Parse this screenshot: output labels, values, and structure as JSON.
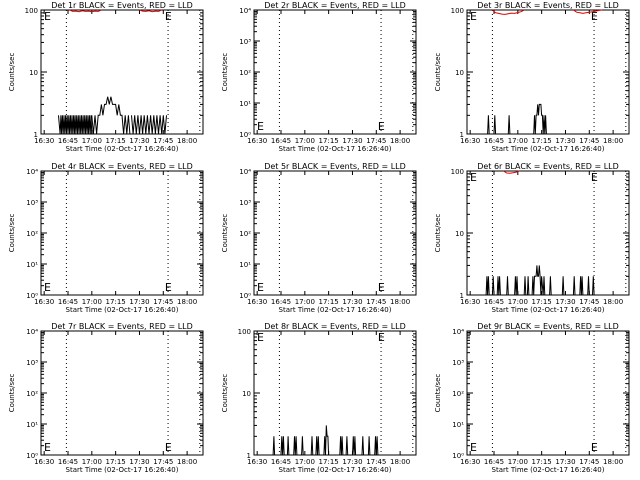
{
  "figure": {
    "x_label": "Start Time (02-Oct-17 16:26:40)",
    "y_label": "Counts/sec",
    "x_ticks": [
      "16:30",
      "16:45",
      "17:00",
      "17:15",
      "17:30",
      "17:45",
      "18:00"
    ],
    "x_tick_minutes": [
      30,
      45,
      60,
      75,
      90,
      105,
      120
    ],
    "x_range_minutes": [
      28,
      130
    ],
    "dotted_lines_minutes": [
      44,
      108,
      128
    ],
    "e_marker": "E",
    "colors": {
      "black": "#000000",
      "red": "#e00000"
    }
  },
  "chart_data": [
    {
      "type": "line",
      "title": "Det 1r BLACK = Events, RED = LLD",
      "yscale": "log",
      "ylim": [
        1,
        100
      ],
      "y_ticks": [
        "1",
        "10",
        "100"
      ],
      "y_tick_values": [
        1,
        10,
        100
      ],
      "series": [
        {
          "color": "black",
          "segments": [
            {
              "x": [
                39,
                40,
                40.5,
                41,
                41.5,
                42,
                42.5,
                43,
                43.5,
                44,
                44.5,
                45,
                45.5,
                46,
                46.5,
                47,
                47.5,
                48,
                48.5,
                49,
                49.5,
                50,
                50.5,
                51,
                51.5,
                52,
                52.5,
                53,
                53.5,
                54,
                54.5,
                55,
                55.5,
                56,
                56.5,
                57,
                57.5,
                58,
                58.5,
                59,
                59.5,
                60
              ],
              "y": [
                2,
                1,
                2,
                1,
                2,
                1,
                2,
                1,
                2,
                1,
                2,
                1,
                2,
                1,
                2,
                1,
                2,
                1,
                2,
                1,
                2,
                1,
                2,
                1,
                2,
                1,
                2,
                1,
                2,
                1,
                2,
                1,
                2,
                1,
                2,
                1,
                2,
                1,
                2,
                1,
                2,
                1
              ]
            },
            {
              "x": [
                60,
                61,
                62,
                63,
                64,
                65,
                66,
                67,
                68,
                69,
                70,
                71,
                72,
                73,
                74,
                75,
                76,
                77,
                78,
                79,
                80,
                81,
                82,
                83,
                84
              ],
              "y": [
                2,
                1,
                2,
                1,
                2,
                2,
                3,
                2,
                3,
                3,
                4,
                3,
                4,
                3,
                3,
                3,
                2,
                3,
                2,
                2,
                1,
                2,
                1,
                2,
                1
              ]
            },
            {
              "x": [
                85,
                86,
                87,
                88,
                89,
                90,
                91,
                92,
                93,
                94,
                95,
                96,
                97,
                98,
                99,
                100,
                101,
                102,
                103,
                104,
                105,
                106,
                107
              ],
              "y": [
                2,
                1,
                2,
                1,
                2,
                1,
                2,
                1,
                2,
                1,
                2,
                1,
                2,
                1,
                2,
                1,
                2,
                1,
                2,
                1,
                2,
                1,
                2
              ]
            }
          ]
        },
        {
          "color": "red",
          "segments": [
            {
              "x": [
                46,
                48,
                50,
                52,
                54,
                56,
                58,
                60,
                62,
                64,
                66
              ],
              "y": [
                100,
                95,
                96,
                94,
                97,
                95,
                96,
                94,
                96,
                95,
                100
              ]
            },
            {
              "x": [
                90,
                92,
                94,
                96,
                98,
                100,
                102,
                104
              ],
              "y": [
                100,
                96,
                95,
                97,
                94,
                96,
                95,
                100
              ]
            }
          ]
        }
      ]
    },
    {
      "type": "line",
      "title": "Det 2r BLACK = Events, RED = LLD",
      "yscale": "log",
      "ylim": [
        1,
        10000
      ],
      "y_ticks": [
        "10⁰",
        "10¹",
        "10²",
        "10³",
        "10⁴"
      ],
      "y_tick_values": [
        1,
        10,
        100,
        1000,
        10000
      ],
      "series": []
    },
    {
      "type": "line",
      "title": "Det 3r BLACK = Events, RED = LLD",
      "yscale": "log",
      "ylim": [
        1,
        100
      ],
      "y_ticks": [
        "1",
        "10",
        "100"
      ],
      "y_tick_values": [
        1,
        10,
        100
      ],
      "series": [
        {
          "color": "black",
          "segments": [
            {
              "x": [
                41,
                41.5,
                42
              ],
              "y": [
                1,
                2,
                1
              ]
            },
            {
              "x": [
                45,
                45.5,
                46
              ],
              "y": [
                1,
                2,
                1
              ]
            },
            {
              "x": [
                54,
                54.5,
                55
              ],
              "y": [
                1,
                2,
                1
              ]
            },
            {
              "x": [
                70,
                70.5,
                71,
                71.5,
                72,
                72.5,
                73,
                73.5,
                74,
                74.5,
                75,
                75.5,
                76,
                76.5,
                77,
                77.5,
                78
              ],
              "y": [
                1,
                2,
                1,
                2,
                2,
                3,
                2,
                3,
                3,
                3,
                2,
                2,
                1,
                2,
                1,
                2,
                1
              ]
            }
          ]
        },
        {
          "color": "red",
          "segments": [
            {
              "x": [
                44,
                46,
                48,
                50,
                52,
                54,
                56,
                58,
                60,
                62,
                64
              ],
              "y": [
                100,
                90,
                88,
                86,
                85,
                87,
                89,
                88,
                91,
                94,
                100
              ]
            },
            {
              "x": [
                95,
                97,
                99,
                101,
                103,
                105,
                107,
                109,
                111,
                113
              ],
              "y": [
                100,
                92,
                90,
                88,
                90,
                92,
                94,
                96,
                98,
                100
              ]
            }
          ]
        }
      ]
    },
    {
      "type": "line",
      "title": "Det 4r BLACK = Events, RED = LLD",
      "yscale": "log",
      "ylim": [
        1,
        10000
      ],
      "y_ticks": [
        "10⁰",
        "10¹",
        "10²",
        "10³",
        "10⁴"
      ],
      "y_tick_values": [
        1,
        10,
        100,
        1000,
        10000
      ],
      "series": []
    },
    {
      "type": "line",
      "title": "Det 5r BLACK = Events, RED = LLD",
      "yscale": "log",
      "ylim": [
        1,
        10000
      ],
      "y_ticks": [
        "10⁰",
        "10¹",
        "10²",
        "10³",
        "10⁴"
      ],
      "y_tick_values": [
        1,
        10,
        100,
        1000,
        10000
      ],
      "series": []
    },
    {
      "type": "line",
      "title": "Det 6r BLACK = Events, RED = LLD",
      "yscale": "log",
      "ylim": [
        1,
        100
      ],
      "y_ticks": [
        "1",
        "10",
        "100"
      ],
      "y_tick_values": [
        1,
        10,
        100
      ],
      "series": [
        {
          "color": "black",
          "segments": [
            {
              "x": [
                40,
                40.5,
                41,
                41.5,
                42,
                44,
                44.5,
                45,
                47,
                47.5,
                48,
                48.5,
                49,
                53,
                53.5,
                54,
                58,
                58.5,
                59,
                59.5,
                60
              ],
              "y": [
                1,
                2,
                1,
                2,
                1,
                1,
                2,
                1,
                1,
                2,
                1,
                2,
                1,
                1,
                2,
                1,
                1,
                2,
                1,
                2,
                1
              ]
            },
            {
              "x": [
                64,
                64.5,
                65,
                66,
                66.5,
                67,
                69,
                69.5,
                70,
                70.5,
                71,
                71.5,
                72,
                72.5,
                73,
                73.5,
                74,
                74.5,
                75,
                76,
                76.5,
                77,
                80,
                80.5,
                81
              ],
              "y": [
                1,
                2,
                1,
                1,
                2,
                1,
                1,
                2,
                1,
                2,
                2,
                2,
                3,
                2,
                2,
                3,
                2,
                1,
                2,
                1,
                2,
                1,
                1,
                2,
                1
              ]
            },
            {
              "x": [
                88,
                88.5,
                89,
                95,
                95.5,
                96,
                99,
                99.5,
                100,
                100.5,
                101,
                104,
                104.5,
                105,
                107,
                107.5,
                108
              ],
              "y": [
                1,
                2,
                1,
                1,
                2,
                1,
                1,
                2,
                1,
                2,
                1,
                1,
                2,
                1,
                1,
                2,
                1
              ]
            }
          ]
        },
        {
          "color": "red",
          "segments": [
            {
              "x": [
                51,
                53,
                55,
                57,
                59,
                61
              ],
              "y": [
                100,
                93,
                92,
                94,
                96,
                100
              ]
            }
          ]
        }
      ]
    },
    {
      "type": "line",
      "title": "Det 7r BLACK = Events, RED = LLD",
      "yscale": "log",
      "ylim": [
        1,
        10000
      ],
      "y_ticks": [
        "10⁰",
        "10¹",
        "10²",
        "10³",
        "10⁴"
      ],
      "y_tick_values": [
        1,
        10,
        100,
        1000,
        10000
      ],
      "series": []
    },
    {
      "type": "line",
      "title": "Det 8r BLACK = Events, RED = LLD",
      "yscale": "log",
      "ylim": [
        1,
        100
      ],
      "y_ticks": [
        "1",
        "10",
        "100"
      ],
      "y_tick_values": [
        1,
        10,
        100
      ],
      "series": [
        {
          "color": "black",
          "segments": [
            {
              "x": [
                40,
                40.5,
                41,
                45,
                45.5,
                46,
                46.5,
                47,
                49,
                49.5,
                50,
                53,
                53.5,
                54,
                54.5,
                55,
                58,
                58.5,
                59
              ],
              "y": [
                1,
                2,
                1,
                1,
                2,
                1,
                2,
                1,
                1,
                2,
                1,
                1,
                2,
                1,
                2,
                1,
                1,
                2,
                1
              ]
            },
            {
              "x": [
                64,
                64.5,
                65,
                67,
                67.5,
                68,
                68.5,
                69,
                72,
                72.5,
                73,
                73.5,
                74,
                74.5,
                75
              ],
              "y": [
                1,
                2,
                1,
                1,
                2,
                1,
                2,
                1,
                1,
                2,
                1,
                3,
                2,
                2,
                1
              ]
            },
            {
              "x": [
                82,
                82.5,
                83,
                83.5,
                84,
                86,
                86.5,
                87,
                90,
                90.5,
                91,
                91.5,
                92,
                96,
                96.5,
                97,
                100,
                100.5,
                101,
                104,
                104.5,
                105,
                105.5,
                106
              ],
              "y": [
                1,
                2,
                1,
                2,
                1,
                1,
                2,
                1,
                1,
                2,
                1,
                2,
                1,
                1,
                2,
                1,
                1,
                2,
                1,
                1,
                2,
                1,
                2,
                1
              ]
            }
          ]
        }
      ]
    },
    {
      "type": "line",
      "title": "Det 9r BLACK = Events, RED = LLD",
      "yscale": "log",
      "ylim": [
        1,
        10000
      ],
      "y_ticks": [
        "10⁰",
        "10¹",
        "10²",
        "10³",
        "10⁴"
      ],
      "y_tick_values": [
        1,
        10,
        100,
        1000,
        10000
      ],
      "series": []
    }
  ]
}
